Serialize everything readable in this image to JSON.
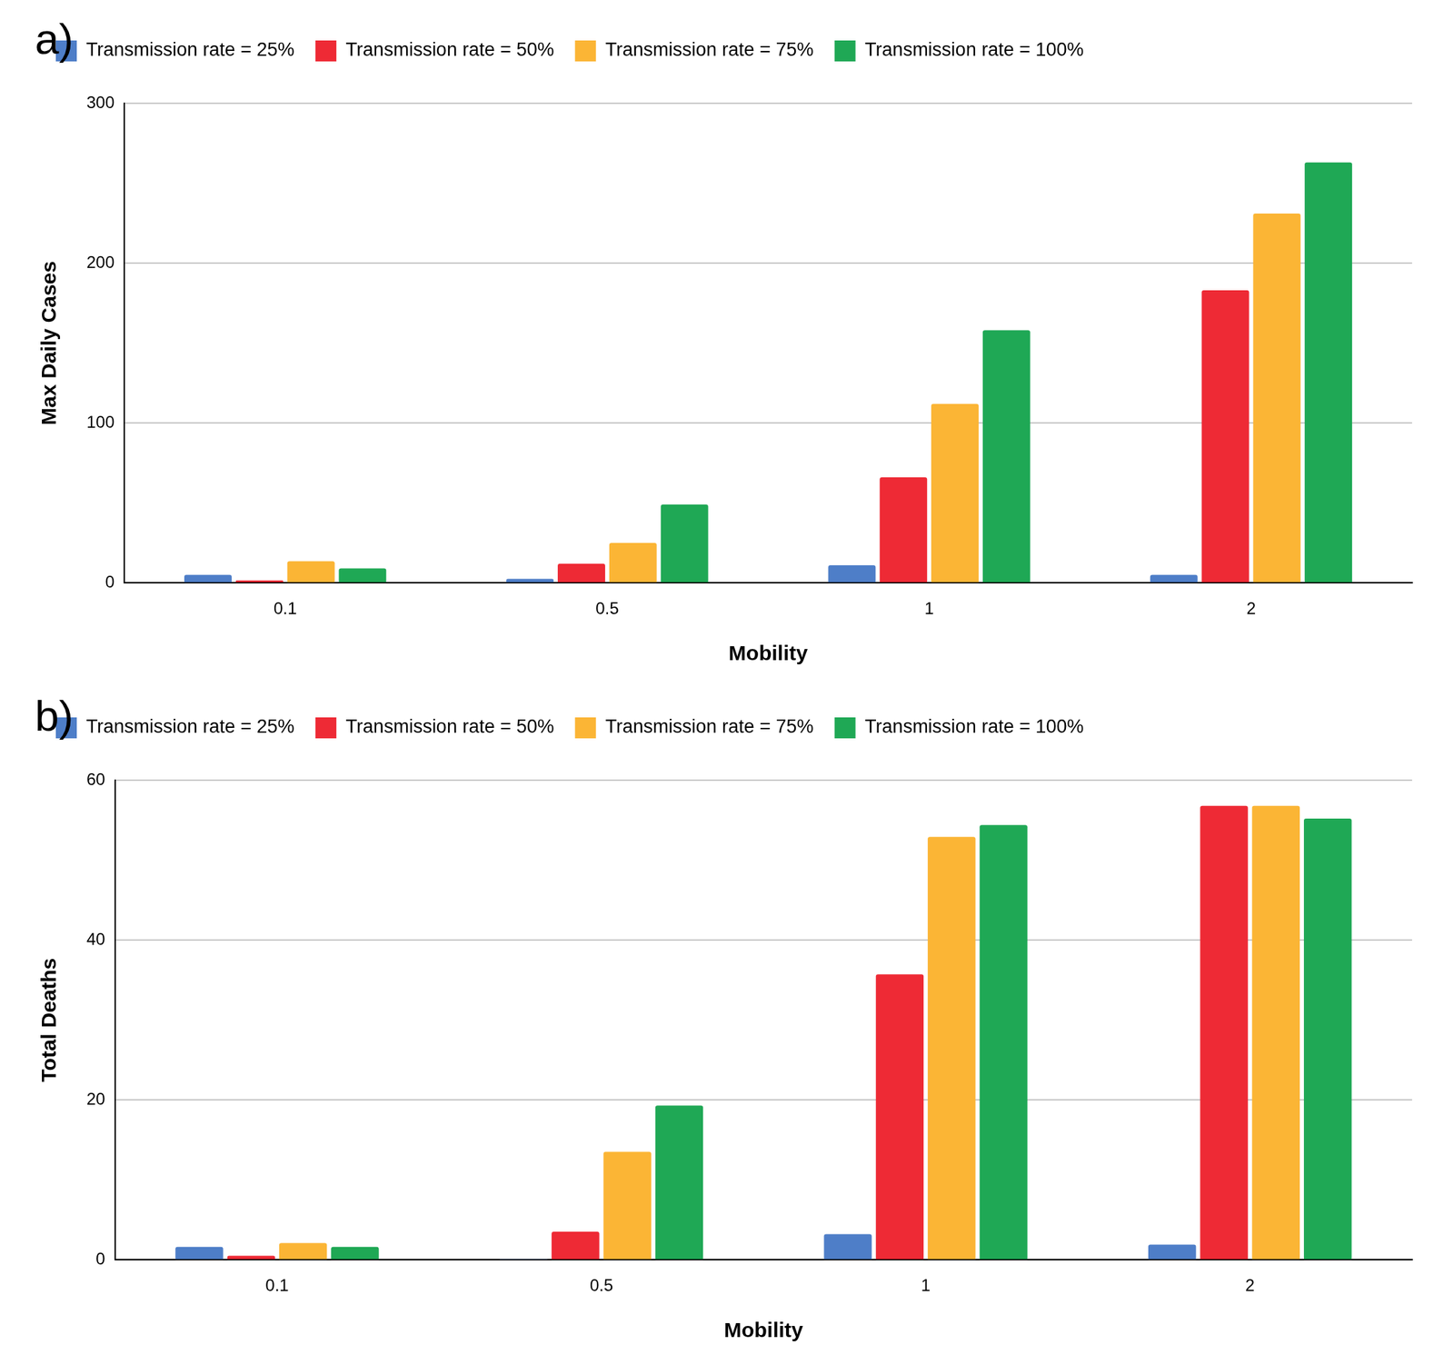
{
  "chart_data": [
    {
      "type": "bar",
      "title": "a)",
      "x_label": "Mobility",
      "y_label": "Max Daily Cases",
      "categories": [
        "0.1",
        "0.5",
        "1",
        "2"
      ],
      "series": [
        {
          "name": "Transmission rate = 25%",
          "color": "#4e7ec8",
          "values": [
            5,
            2.5,
            11,
            5
          ]
        },
        {
          "name": "Transmission rate = 50%",
          "color": "#ee2a35",
          "values": [
            1.5,
            12,
            66,
            183
          ]
        },
        {
          "name": "Transmission rate = 75%",
          "color": "#fbb535",
          "values": [
            13.5,
            25,
            112,
            231
          ]
        },
        {
          "name": "Transmission rate = 100%",
          "color": "#1fa855",
          "values": [
            9,
            49,
            158,
            263
          ]
        }
      ],
      "ylim": [
        0,
        300
      ],
      "yticks": [
        0,
        100,
        200,
        300
      ],
      "grid": true,
      "legend": "top-left"
    },
    {
      "type": "bar",
      "title": "b)",
      "x_label": "Mobility",
      "y_label": "Total Deaths",
      "categories": [
        "0.1",
        "0.5",
        "1",
        "2"
      ],
      "series": [
        {
          "name": "Transmission rate = 25%",
          "color": "#4e7ec8",
          "values": [
            1.6,
            0.1,
            3.2,
            1.9
          ]
        },
        {
          "name": "Transmission rate = 50%",
          "color": "#ee2a35",
          "values": [
            0.5,
            3.5,
            35.7,
            56.8
          ]
        },
        {
          "name": "Transmission rate = 75%",
          "color": "#fbb535",
          "values": [
            2.1,
            13.5,
            52.9,
            56.8
          ]
        },
        {
          "name": "Transmission rate = 100%",
          "color": "#1fa855",
          "values": [
            1.6,
            19.3,
            54.4,
            55.2
          ]
        }
      ],
      "ylim": [
        0,
        60
      ],
      "yticks": [
        0,
        20,
        40,
        60
      ],
      "grid": true,
      "legend": "top-left"
    }
  ]
}
